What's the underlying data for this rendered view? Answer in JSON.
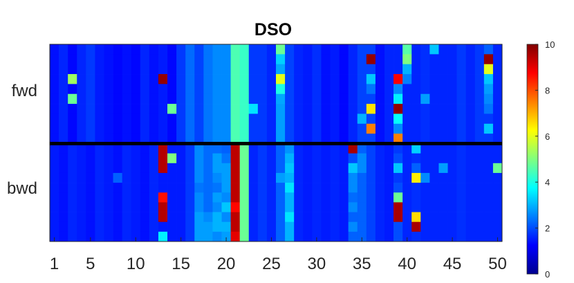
{
  "chart_data": {
    "type": "heatmap",
    "title": "DSO",
    "xlabel": "",
    "ylabel": "",
    "x_ticks": [
      "1",
      "5",
      "10",
      "15",
      "20",
      "25",
      "30",
      "35",
      "40",
      "45",
      "50"
    ],
    "groups": [
      "fwd",
      "bwd"
    ],
    "columns": 50,
    "rows_per_group": 10,
    "colorbar": {
      "min": 0,
      "max": 10,
      "ticks": [
        "0",
        "2",
        "4",
        "6",
        "8",
        "10"
      ],
      "colormap": "jet"
    },
    "fwd": [
      [
        1.4,
        1.6,
        1.3,
        1.6,
        1.8,
        1.5,
        1.4,
        1.3,
        1.4,
        1.3,
        1.6,
        1.4,
        1.5,
        1.3,
        1.8,
        2.3,
        1.9,
        2.4,
        2.6,
        2.6,
        4.5,
        4.3,
        1.8,
        1.8,
        1.6,
        4.8,
        1.9,
        1.6,
        1.5,
        1.7,
        1.4,
        1.5,
        1.3,
        1.6,
        1.9,
        1.9,
        1.4,
        1.6,
        1.6,
        4.6,
        1.6,
        1.7,
        3.2,
        1.6,
        1.6,
        1.8,
        1.6,
        1.8,
        2.2,
        1.6
      ],
      [
        1.4,
        1.6,
        1.3,
        1.6,
        1.8,
        1.5,
        1.4,
        1.3,
        1.4,
        1.3,
        1.6,
        1.4,
        1.5,
        1.3,
        1.8,
        2.3,
        1.9,
        2.4,
        2.6,
        2.6,
        4.5,
        4.3,
        1.8,
        1.8,
        1.6,
        3.3,
        1.9,
        1.6,
        1.5,
        1.7,
        1.4,
        1.5,
        1.3,
        1.6,
        1.9,
        9.8,
        1.4,
        1.6,
        1.6,
        5.0,
        1.6,
        1.7,
        1.6,
        1.6,
        1.6,
        1.8,
        1.6,
        1.8,
        9.8,
        1.6
      ],
      [
        1.4,
        1.6,
        1.3,
        1.6,
        1.8,
        1.5,
        1.4,
        1.3,
        1.4,
        1.3,
        1.6,
        1.4,
        1.5,
        1.3,
        1.8,
        2.3,
        1.9,
        2.4,
        2.6,
        2.6,
        4.5,
        4.3,
        1.8,
        1.8,
        1.6,
        2.9,
        1.9,
        1.6,
        1.5,
        1.7,
        1.4,
        1.5,
        1.3,
        1.6,
        1.9,
        1.9,
        1.4,
        1.6,
        1.6,
        3.0,
        1.6,
        1.7,
        1.6,
        1.6,
        1.6,
        1.8,
        1.6,
        1.8,
        6.0,
        1.6
      ],
      [
        1.4,
        1.6,
        5.3,
        1.6,
        1.8,
        1.5,
        1.4,
        1.3,
        1.4,
        1.3,
        1.6,
        1.4,
        9.8,
        1.3,
        1.8,
        2.3,
        1.9,
        2.4,
        2.6,
        2.6,
        4.5,
        4.3,
        1.8,
        1.8,
        1.6,
        6.0,
        1.9,
        1.6,
        1.5,
        1.7,
        1.4,
        1.5,
        1.3,
        1.6,
        1.9,
        3.2,
        1.4,
        1.6,
        8.8,
        2.5,
        1.6,
        1.7,
        1.6,
        1.6,
        1.6,
        1.8,
        1.6,
        1.8,
        3.2,
        1.6
      ],
      [
        1.4,
        1.6,
        1.3,
        1.6,
        1.8,
        1.5,
        1.4,
        1.3,
        1.4,
        1.3,
        1.6,
        1.4,
        1.5,
        1.3,
        1.8,
        2.3,
        1.9,
        2.4,
        2.6,
        2.6,
        4.5,
        4.3,
        1.8,
        1.8,
        1.6,
        4.0,
        1.9,
        1.6,
        1.5,
        1.7,
        1.4,
        1.5,
        1.3,
        1.6,
        1.9,
        2.4,
        1.4,
        1.6,
        2.6,
        1.6,
        1.6,
        1.7,
        1.6,
        1.6,
        1.6,
        1.8,
        1.6,
        1.8,
        2.8,
        1.6
      ],
      [
        1.4,
        1.6,
        4.8,
        1.6,
        1.8,
        1.5,
        1.4,
        1.3,
        1.4,
        1.3,
        1.6,
        1.4,
        1.5,
        1.3,
        1.8,
        2.3,
        1.9,
        2.4,
        2.6,
        2.6,
        4.5,
        4.3,
        1.8,
        1.8,
        1.6,
        2.9,
        1.9,
        1.6,
        1.5,
        1.7,
        1.4,
        1.5,
        1.3,
        1.6,
        1.9,
        1.9,
        1.4,
        1.6,
        3.6,
        1.6,
        1.6,
        2.8,
        1.6,
        1.6,
        1.6,
        1.8,
        1.6,
        1.8,
        2.6,
        1.6
      ],
      [
        1.4,
        1.6,
        1.3,
        1.6,
        1.8,
        1.5,
        1.4,
        1.3,
        1.4,
        1.3,
        1.6,
        1.4,
        1.5,
        4.8,
        1.8,
        2.3,
        1.9,
        2.4,
        2.6,
        2.6,
        4.5,
        4.3,
        3.5,
        1.8,
        1.6,
        2.8,
        1.9,
        1.6,
        1.5,
        1.7,
        1.4,
        1.5,
        1.3,
        1.6,
        1.9,
        6.5,
        1.4,
        1.6,
        9.8,
        1.6,
        1.6,
        1.7,
        1.6,
        1.6,
        1.6,
        1.8,
        1.6,
        1.8,
        2.4,
        1.6
      ],
      [
        1.4,
        1.6,
        1.3,
        1.6,
        1.8,
        1.5,
        1.4,
        1.3,
        1.4,
        1.3,
        1.6,
        1.4,
        1.5,
        1.3,
        1.8,
        2.3,
        1.9,
        2.4,
        2.6,
        2.6,
        4.5,
        4.3,
        1.8,
        1.8,
        1.6,
        2.8,
        1.9,
        1.6,
        1.5,
        1.7,
        1.4,
        1.5,
        1.3,
        1.6,
        3.0,
        1.9,
        1.4,
        1.6,
        3.8,
        1.6,
        1.6,
        1.7,
        1.6,
        1.6,
        1.6,
        1.8,
        1.6,
        1.8,
        1.8,
        1.6
      ],
      [
        1.4,
        1.6,
        1.3,
        1.6,
        1.8,
        1.5,
        1.4,
        1.3,
        1.4,
        1.3,
        1.6,
        1.4,
        1.5,
        1.3,
        1.8,
        2.3,
        1.9,
        2.4,
        2.6,
        2.6,
        4.5,
        4.3,
        1.8,
        1.8,
        1.6,
        2.8,
        1.9,
        1.6,
        1.5,
        1.7,
        1.4,
        1.5,
        1.3,
        1.6,
        1.9,
        7.5,
        1.4,
        1.6,
        2.6,
        1.6,
        1.6,
        1.7,
        1.6,
        1.6,
        1.6,
        1.8,
        1.6,
        1.8,
        3.2,
        1.6
      ],
      [
        1.4,
        1.6,
        1.3,
        1.6,
        1.8,
        1.5,
        1.4,
        1.3,
        1.4,
        1.3,
        1.6,
        1.4,
        1.5,
        1.3,
        1.8,
        2.3,
        1.9,
        2.4,
        2.6,
        2.6,
        4.5,
        4.3,
        1.8,
        1.8,
        1.6,
        2.8,
        1.9,
        1.6,
        1.5,
        1.7,
        1.4,
        1.5,
        1.3,
        1.6,
        1.9,
        1.9,
        1.4,
        1.6,
        7.5,
        1.6,
        1.6,
        1.7,
        1.6,
        1.6,
        1.6,
        1.8,
        1.6,
        1.8,
        1.8,
        1.6
      ]
    ],
    "bwd": [
      [
        1.5,
        1.4,
        1.6,
        1.5,
        1.4,
        1.6,
        1.5,
        1.4,
        1.6,
        1.5,
        1.4,
        1.6,
        9.5,
        1.5,
        1.5,
        1.8,
        2.6,
        2.3,
        2.3,
        2.2,
        9.4,
        4.8,
        1.6,
        1.8,
        1.6,
        2.2,
        2.7,
        1.6,
        1.5,
        1.6,
        1.5,
        1.6,
        1.5,
        9.6,
        2.2,
        1.9,
        1.6,
        1.5,
        1.8,
        1.6,
        3.3,
        1.6,
        1.6,
        1.6,
        1.6,
        1.7,
        1.6,
        1.6,
        1.6,
        1.6
      ],
      [
        1.5,
        1.4,
        1.6,
        1.5,
        1.4,
        1.6,
        1.5,
        1.4,
        1.6,
        1.5,
        1.4,
        1.6,
        9.5,
        5.0,
        1.5,
        1.8,
        2.6,
        2.3,
        2.8,
        2.4,
        9.4,
        4.8,
        1.6,
        1.8,
        1.6,
        2.2,
        3.0,
        1.6,
        1.5,
        1.6,
        1.5,
        1.6,
        1.5,
        2.0,
        2.6,
        1.9,
        1.6,
        1.5,
        2.0,
        1.6,
        1.7,
        1.6,
        1.6,
        1.6,
        1.6,
        1.7,
        1.6,
        1.6,
        1.6,
        1.6
      ],
      [
        1.5,
        1.4,
        1.6,
        1.5,
        1.4,
        1.6,
        1.5,
        1.4,
        1.6,
        1.5,
        1.4,
        1.6,
        9.5,
        1.5,
        1.5,
        1.8,
        2.6,
        2.3,
        2.8,
        2.8,
        9.4,
        4.8,
        1.6,
        1.8,
        1.6,
        2.2,
        3.2,
        1.6,
        1.5,
        1.6,
        1.5,
        1.6,
        1.5,
        3.2,
        2.6,
        1.9,
        1.6,
        1.5,
        3.2,
        1.6,
        2.2,
        1.6,
        1.6,
        2.8,
        1.6,
        1.7,
        1.6,
        1.6,
        1.6,
        4.8
      ],
      [
        1.5,
        1.4,
        1.6,
        1.5,
        1.4,
        1.6,
        1.5,
        2.2,
        1.6,
        1.5,
        1.4,
        1.6,
        1.5,
        1.5,
        1.5,
        1.8,
        2.6,
        2.3,
        2.6,
        2.8,
        9.4,
        4.8,
        1.6,
        1.8,
        1.6,
        2.8,
        3.0,
        1.6,
        1.5,
        1.6,
        1.5,
        1.6,
        1.5,
        2.6,
        2.2,
        1.9,
        1.6,
        1.5,
        1.8,
        1.6,
        6.4,
        2.6,
        1.6,
        1.6,
        1.6,
        1.7,
        1.6,
        1.6,
        1.6,
        1.6
      ],
      [
        1.5,
        1.4,
        1.6,
        1.5,
        1.4,
        1.6,
        1.5,
        1.4,
        1.6,
        1.5,
        1.4,
        1.6,
        1.5,
        1.5,
        1.5,
        1.8,
        2.4,
        2.3,
        2.4,
        2.8,
        9.4,
        4.8,
        1.6,
        1.8,
        1.6,
        2.2,
        3.5,
        1.6,
        1.5,
        1.6,
        1.5,
        1.6,
        1.5,
        2.6,
        2.2,
        1.9,
        1.6,
        1.5,
        2.0,
        1.6,
        1.7,
        1.6,
        1.6,
        1.6,
        1.6,
        1.7,
        1.6,
        1.6,
        1.6,
        1.6
      ],
      [
        1.5,
        1.4,
        1.6,
        1.5,
        1.4,
        1.6,
        1.5,
        1.4,
        1.6,
        1.5,
        1.4,
        1.6,
        8.6,
        1.5,
        1.5,
        1.8,
        2.6,
        2.3,
        2.8,
        2.6,
        9.4,
        4.8,
        1.6,
        1.8,
        1.6,
        2.2,
        3.0,
        1.6,
        1.5,
        1.6,
        1.5,
        1.6,
        1.5,
        2.3,
        2.2,
        1.9,
        1.6,
        1.5,
        4.8,
        1.6,
        1.7,
        1.6,
        1.6,
        1.6,
        1.6,
        1.7,
        1.6,
        1.6,
        1.6,
        1.6
      ],
      [
        1.5,
        1.4,
        1.6,
        1.5,
        1.4,
        1.6,
        1.5,
        1.4,
        1.6,
        1.5,
        1.4,
        1.6,
        9.5,
        1.5,
        1.5,
        1.8,
        2.6,
        2.3,
        2.6,
        3.2,
        8.7,
        4.8,
        1.6,
        1.8,
        1.6,
        2.2,
        3.0,
        1.6,
        1.5,
        1.6,
        1.5,
        1.6,
        1.5,
        2.6,
        2.2,
        1.9,
        1.6,
        1.5,
        9.6,
        1.6,
        1.7,
        1.6,
        1.6,
        1.6,
        1.6,
        1.7,
        1.6,
        1.6,
        1.6,
        1.6
      ],
      [
        1.5,
        1.4,
        1.6,
        1.5,
        1.4,
        1.6,
        1.5,
        1.4,
        1.6,
        1.5,
        1.4,
        1.6,
        9.5,
        1.5,
        1.5,
        1.8,
        2.8,
        2.6,
        3.0,
        2.6,
        9.4,
        4.8,
        1.6,
        1.8,
        1.6,
        2.2,
        3.5,
        1.6,
        1.5,
        1.6,
        1.5,
        1.6,
        1.5,
        2.2,
        2.2,
        1.9,
        1.6,
        1.5,
        9.6,
        1.6,
        6.6,
        1.6,
        1.6,
        1.6,
        1.6,
        1.7,
        1.6,
        1.6,
        1.6,
        1.6
      ],
      [
        1.5,
        1.4,
        1.6,
        1.5,
        1.4,
        1.6,
        1.5,
        1.4,
        1.6,
        1.5,
        1.4,
        1.6,
        1.5,
        1.5,
        1.5,
        1.8,
        2.8,
        2.8,
        3.0,
        3.0,
        9.4,
        4.8,
        1.6,
        1.8,
        1.6,
        2.2,
        3.0,
        1.6,
        1.5,
        1.6,
        1.5,
        1.6,
        1.5,
        2.6,
        2.2,
        1.9,
        1.6,
        1.5,
        2.0,
        1.6,
        9.6,
        1.6,
        1.6,
        1.6,
        1.6,
        1.7,
        1.6,
        1.6,
        1.6,
        1.6
      ],
      [
        1.5,
        1.4,
        1.6,
        1.5,
        1.4,
        1.6,
        1.5,
        1.4,
        1.6,
        1.5,
        1.4,
        1.6,
        3.6,
        1.5,
        1.5,
        1.8,
        2.8,
        2.8,
        2.6,
        2.8,
        9.0,
        4.8,
        1.6,
        1.8,
        1.6,
        2.2,
        3.0,
        1.6,
        1.5,
        1.6,
        1.5,
        1.6,
        1.5,
        2.2,
        2.2,
        1.9,
        1.6,
        1.5,
        2.0,
        1.6,
        1.7,
        1.6,
        1.6,
        1.6,
        1.6,
        1.7,
        1.6,
        1.6,
        1.6,
        1.6
      ]
    ]
  }
}
